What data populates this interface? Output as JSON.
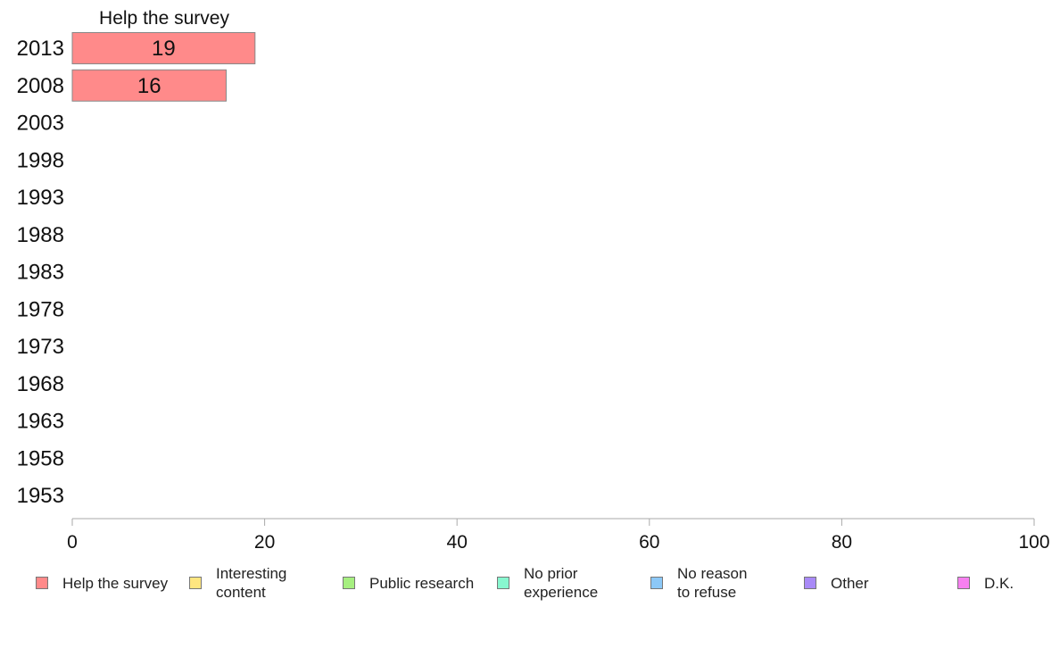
{
  "chart_data": {
    "type": "bar",
    "orientation": "horizontal",
    "stacked": true,
    "categories": [
      "2013",
      "2008",
      "2003",
      "1998",
      "1993",
      "1988",
      "1983",
      "1978",
      "1973",
      "1968",
      "1963",
      "1958",
      "1953"
    ],
    "series": [
      {
        "name": "Help the survey",
        "label": "Help the survey",
        "color": "#ff8a8a",
        "values": [
          19,
          16,
          null,
          null,
          null,
          null,
          null,
          null,
          null,
          null,
          null,
          null,
          null
        ]
      },
      {
        "name": "Interesting content",
        "label": "Interesting\ncontent",
        "color": "#ffe680",
        "values": [
          null,
          null,
          null,
          null,
          null,
          null,
          null,
          null,
          null,
          null,
          null,
          null,
          null
        ]
      },
      {
        "name": "Public research",
        "label": "Public research",
        "color": "#a6ef80",
        "values": [
          null,
          null,
          null,
          null,
          null,
          null,
          null,
          null,
          null,
          null,
          null,
          null,
          null
        ]
      },
      {
        "name": "No prior experience",
        "label": "No prior\nexperience",
        "color": "#88f7cf",
        "values": [
          null,
          null,
          null,
          null,
          null,
          null,
          null,
          null,
          null,
          null,
          null,
          null,
          null
        ]
      },
      {
        "name": "No reason to refuse",
        "label": "No reason\nto refuse",
        "color": "#8cc8f7",
        "values": [
          null,
          null,
          null,
          null,
          null,
          null,
          null,
          null,
          null,
          null,
          null,
          null,
          null
        ]
      },
      {
        "name": "Other",
        "label": "Other",
        "color": "#a98af7",
        "values": [
          null,
          null,
          null,
          null,
          null,
          null,
          null,
          null,
          null,
          null,
          null,
          null,
          null
        ]
      },
      {
        "name": "D.K.",
        "label": "D.K.",
        "color": "#f780f0",
        "values": [
          null,
          null,
          null,
          null,
          null,
          null,
          null,
          null,
          null,
          null,
          null,
          null,
          null
        ]
      }
    ],
    "series_header": "Help the survey",
    "xlim": [
      0,
      100
    ],
    "xticks": [
      0,
      20,
      40,
      60,
      80,
      100
    ],
    "grid": false,
    "legend_position": "bottom"
  }
}
